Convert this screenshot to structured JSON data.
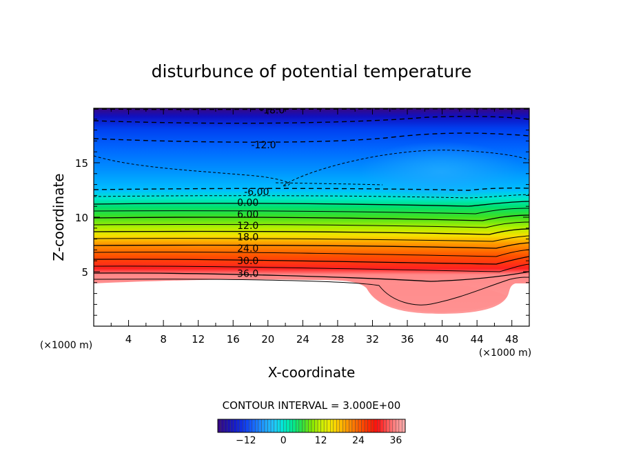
{
  "chart_data": {
    "type": "contour",
    "title": "disturbunce of potential temperature",
    "xlabel": "X-coordinate",
    "ylabel": "Z-coordinate",
    "x_unit_label": "(×1000 m)",
    "z_unit_label": "(×1000 m)",
    "xlim": [
      0,
      50
    ],
    "zlim": [
      0,
      20
    ],
    "x_ticks": [
      4,
      8,
      12,
      16,
      20,
      24,
      28,
      32,
      36,
      40,
      44,
      48
    ],
    "x_tick_labels": [
      "4",
      "8",
      "12",
      "16",
      "20",
      "24",
      "28",
      "32",
      "36",
      "40",
      "44",
      "48"
    ],
    "z_ticks": [
      5,
      10,
      15
    ],
    "z_tick_labels": [
      "5",
      "10",
      "15"
    ],
    "contour_interval_text": "CONTOUR INTERVAL = 3.000E+00",
    "contour_interval": 3.0,
    "color_range": [
      -21,
      39
    ],
    "colorbar_ticks": [
      -12,
      0,
      12,
      24,
      36
    ],
    "colorbar_tick_labels": [
      "−12",
      "0",
      "12",
      "24",
      "36"
    ],
    "contour_labels": [
      {
        "text": "-18.0",
        "value": -18,
        "x": 20.5,
        "z": 19.85
      },
      {
        "text": "-12.0",
        "value": -12,
        "x": 19.5,
        "z": 16.65
      },
      {
        "text": "-6.00",
        "value": -6,
        "x": 18.7,
        "z": 12.35
      },
      {
        "text": "0.00",
        "value": 0,
        "x": 17.7,
        "z": 11.35
      },
      {
        "text": "6.00",
        "value": 6,
        "x": 17.7,
        "z": 10.3
      },
      {
        "text": "12.0",
        "value": 12,
        "x": 17.7,
        "z": 9.25
      },
      {
        "text": "18.0",
        "value": 18,
        "x": 17.7,
        "z": 8.2
      },
      {
        "text": "24.0",
        "value": 24,
        "x": 17.7,
        "z": 7.15
      },
      {
        "text": "30.0",
        "value": 30,
        "x": 17.7,
        "z": 6.0
      },
      {
        "text": "36.0",
        "value": 36,
        "x": 17.7,
        "z": 4.85
      }
    ]
  }
}
